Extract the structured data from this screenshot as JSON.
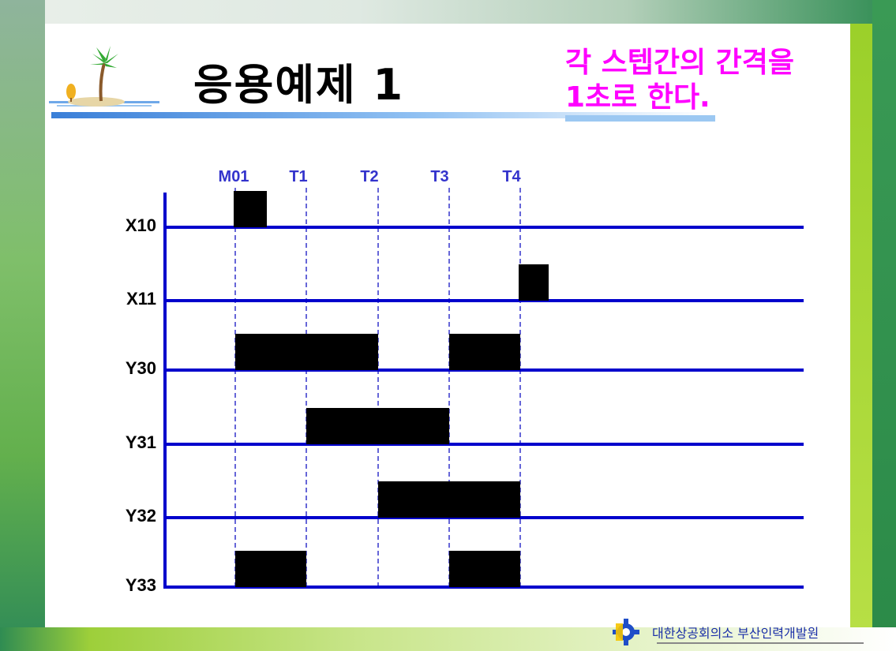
{
  "slide": {
    "title": "응용예제 1",
    "note_line1": "각 스텝간의 간격을",
    "note_line2": "1초로 한다.",
    "footer_org": "대한상공회의소 부산인력개발원"
  },
  "colors": {
    "signal_line": "#0000cc",
    "timing_marker": "#3333cc",
    "pulse": "#000000",
    "note_text": "#ff00ff",
    "title_text": "#000000"
  },
  "icons": {
    "title_decoration": "palm-island-icon",
    "footer_logo": "gear-logo-icon"
  },
  "timing": {
    "markers": [
      "M01",
      "T1",
      "T2",
      "T3",
      "T4"
    ],
    "signals": [
      {
        "name": "X10",
        "pulses": [
          [
            "M01",
            "M01+"
          ]
        ]
      },
      {
        "name": "X11",
        "pulses": [
          [
            "T4",
            "T4+"
          ]
        ]
      },
      {
        "name": "Y30",
        "pulses": [
          [
            "M01",
            "T2"
          ],
          [
            "T3",
            "T4"
          ]
        ]
      },
      {
        "name": "Y31",
        "pulses": [
          [
            "T1",
            "T3"
          ]
        ]
      },
      {
        "name": "Y32",
        "pulses": [
          [
            "T2",
            "T4"
          ]
        ]
      },
      {
        "name": "Y33",
        "pulses": [
          [
            "M01",
            "T1"
          ],
          [
            "T3",
            "T4"
          ]
        ]
      }
    ]
  }
}
